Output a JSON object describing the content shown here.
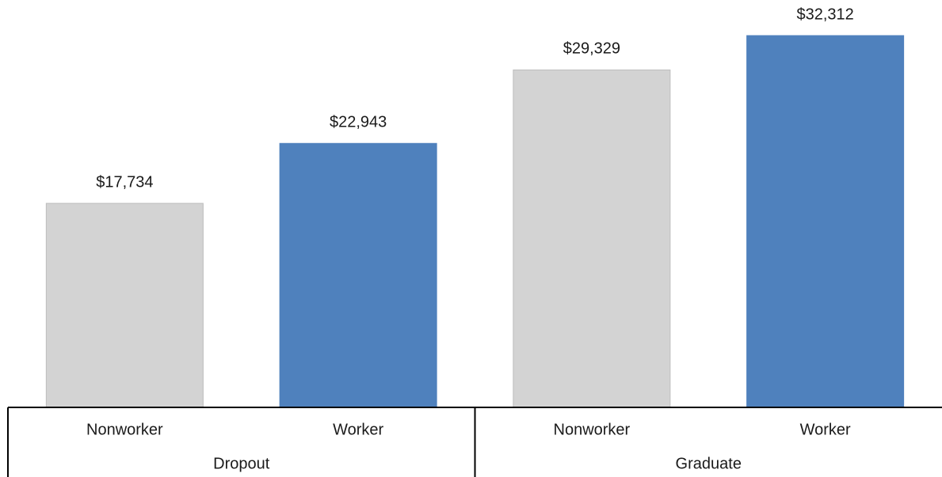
{
  "chart_data": {
    "type": "bar",
    "categories": [
      "Nonworker",
      "Worker",
      "Nonworker",
      "Worker"
    ],
    "groups": [
      "Dropout",
      "Graduate"
    ],
    "values": [
      17734,
      22943,
      29329,
      32312
    ],
    "value_labels": [
      "$17,734",
      "$22,943",
      "$29,329",
      "$32,312"
    ],
    "colors": [
      "#d3d3d3",
      "#4f81bd",
      "#d3d3d3",
      "#4f81bd"
    ]
  }
}
